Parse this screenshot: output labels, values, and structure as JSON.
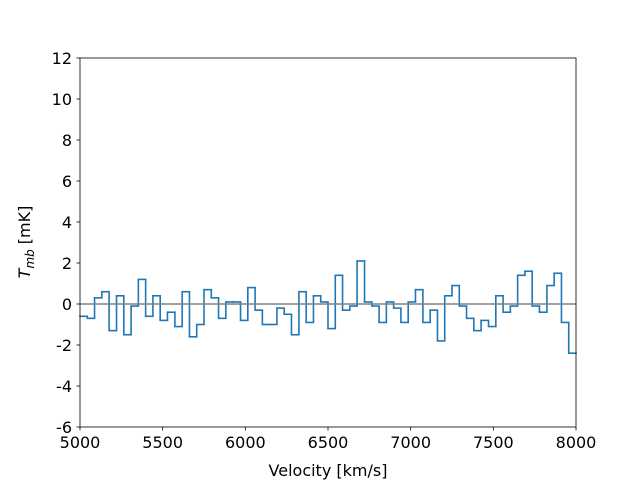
{
  "chart_data": {
    "type": "step",
    "xlabel": "Velocity [km/s]",
    "ylabel": {
      "symbol": "T",
      "subscript": "mb",
      "unit": "[mK]"
    },
    "x": [
      5000,
      5044,
      5088,
      5132,
      5176,
      5221,
      5265,
      5309,
      5353,
      5397,
      5441,
      5485,
      5529,
      5574,
      5618,
      5662,
      5706,
      5750,
      5794,
      5838,
      5882,
      5926,
      5971,
      6015,
      6059,
      6103,
      6147,
      6191,
      6235,
      6279,
      6324,
      6368,
      6412,
      6456,
      6500,
      6544,
      6588,
      6632,
      6676,
      6721,
      6765,
      6809,
      6853,
      6897,
      6941,
      6985,
      7029,
      7074,
      7118,
      7162,
      7206,
      7250,
      7294,
      7338,
      7382,
      7426,
      7471,
      7515,
      7559,
      7603,
      7647,
      7691,
      7735,
      7779,
      7824,
      7868,
      7912,
      7956
    ],
    "values": [
      -0.6,
      -0.7,
      0.3,
      0.6,
      -1.3,
      0.4,
      -1.5,
      -0.1,
      1.2,
      -0.6,
      0.4,
      -0.8,
      -0.4,
      -1.1,
      0.6,
      -1.6,
      -1.0,
      0.7,
      0.3,
      -0.7,
      0.1,
      0.1,
      -0.8,
      0.8,
      -0.3,
      -1.0,
      -1.0,
      -0.2,
      -0.5,
      -1.5,
      0.6,
      -0.9,
      0.4,
      0.1,
      -1.2,
      1.4,
      -0.3,
      -0.1,
      2.1,
      0.1,
      -0.1,
      -0.9,
      0.1,
      -0.2,
      -0.9,
      0.1,
      0.7,
      -0.9,
      -0.3,
      -1.8,
      0.4,
      0.9,
      -0.1,
      -0.7,
      -1.3,
      -0.8,
      -1.1,
      0.4,
      -0.4,
      -0.1,
      1.4,
      1.6,
      -0.1,
      -0.4,
      0.9,
      1.5,
      -0.9,
      -2.4
    ],
    "color": "#1f77b4",
    "baseline": 0,
    "baseline_color": "#808080",
    "xlim": [
      5000,
      8000
    ],
    "xticks": [
      5000,
      5500,
      6000,
      6500,
      7000,
      7500,
      8000
    ],
    "ylim": [
      -6,
      12
    ],
    "yticks": [
      -6,
      -4,
      -2,
      0,
      2,
      4,
      6,
      8,
      10,
      12
    ]
  }
}
